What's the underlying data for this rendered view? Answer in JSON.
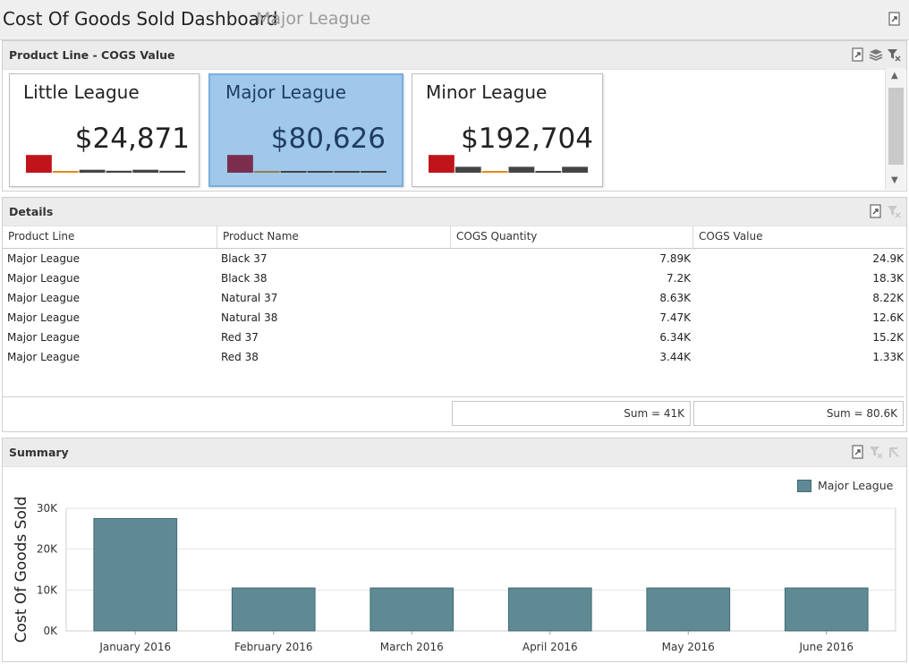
{
  "dashboard": {
    "title": "Cost Of Goods Sold Dashboard",
    "subtitle": "Major League"
  },
  "product_panel": {
    "title": "Product Line - COGS Value",
    "cards": [
      {
        "name": "Little League",
        "value": "$24,871",
        "selected": false,
        "spark": [
          {
            "h": 0.9,
            "color": "#c0141a"
          },
          {
            "h": 0.05,
            "color": "#e08a1e"
          },
          {
            "h": 0.15,
            "color": "#444444"
          },
          {
            "h": 0.1,
            "color": "#444444"
          },
          {
            "h": 0.15,
            "color": "#444444"
          },
          {
            "h": 0.1,
            "color": "#444444"
          }
        ]
      },
      {
        "name": "Major League",
        "value": "$80,626",
        "selected": true,
        "spark": [
          {
            "h": 0.9,
            "color": "#7b2d4e"
          },
          {
            "h": 0.05,
            "color": "#9a7a4a"
          },
          {
            "h": 0.08,
            "color": "#444444"
          },
          {
            "h": 0.08,
            "color": "#444444"
          },
          {
            "h": 0.08,
            "color": "#444444"
          },
          {
            "h": 0.08,
            "color": "#444444"
          }
        ]
      },
      {
        "name": "Minor League",
        "value": "$192,704",
        "selected": false,
        "spark": [
          {
            "h": 0.9,
            "color": "#c0141a"
          },
          {
            "h": 0.3,
            "color": "#444444"
          },
          {
            "h": 0.05,
            "color": "#e08a1e"
          },
          {
            "h": 0.3,
            "color": "#444444"
          },
          {
            "h": 0.05,
            "color": "#444444"
          },
          {
            "h": 0.3,
            "color": "#444444"
          }
        ]
      }
    ]
  },
  "details": {
    "title": "Details",
    "columns": [
      "Product Line",
      "Product Name",
      "COGS Quantity",
      "COGS Value"
    ],
    "rows": [
      [
        "Major League",
        "Black 37",
        "7.89K",
        "24.9K"
      ],
      [
        "Major League",
        "Black 38",
        "7.2K",
        "18.3K"
      ],
      [
        "Major League",
        "Natural 37",
        "8.63K",
        "8.22K"
      ],
      [
        "Major League",
        "Natural 38",
        "7.47K",
        "12.6K"
      ],
      [
        "Major League",
        "Red 37",
        "6.34K",
        "15.2K"
      ],
      [
        "Major League",
        "Red 38",
        "3.44K",
        "1.33K"
      ]
    ],
    "totals": {
      "quantity": "Sum = 41K",
      "value": "Sum = 80.6K"
    }
  },
  "summary": {
    "title": "Summary"
  },
  "chart_data": {
    "type": "bar",
    "categories": [
      "January 2016",
      "February 2016",
      "March 2016",
      "April 2016",
      "May 2016",
      "June 2016"
    ],
    "series": [
      {
        "name": "Major League",
        "color": "#5f8a93",
        "values": [
          27500,
          10500,
          10500,
          10500,
          10500,
          10500
        ]
      }
    ],
    "ylabel": "Cost Of Goods Sold",
    "xlabel": "",
    "ylim": [
      0,
      30000
    ],
    "yticks": [
      0,
      10000,
      20000,
      30000
    ],
    "ytick_labels": [
      "0K",
      "10K",
      "20K",
      "30K"
    ],
    "grid": true,
    "legend": "top-right"
  },
  "colors": {
    "accent_selected": "#9fc8eb",
    "bar": "#5f8a93"
  }
}
